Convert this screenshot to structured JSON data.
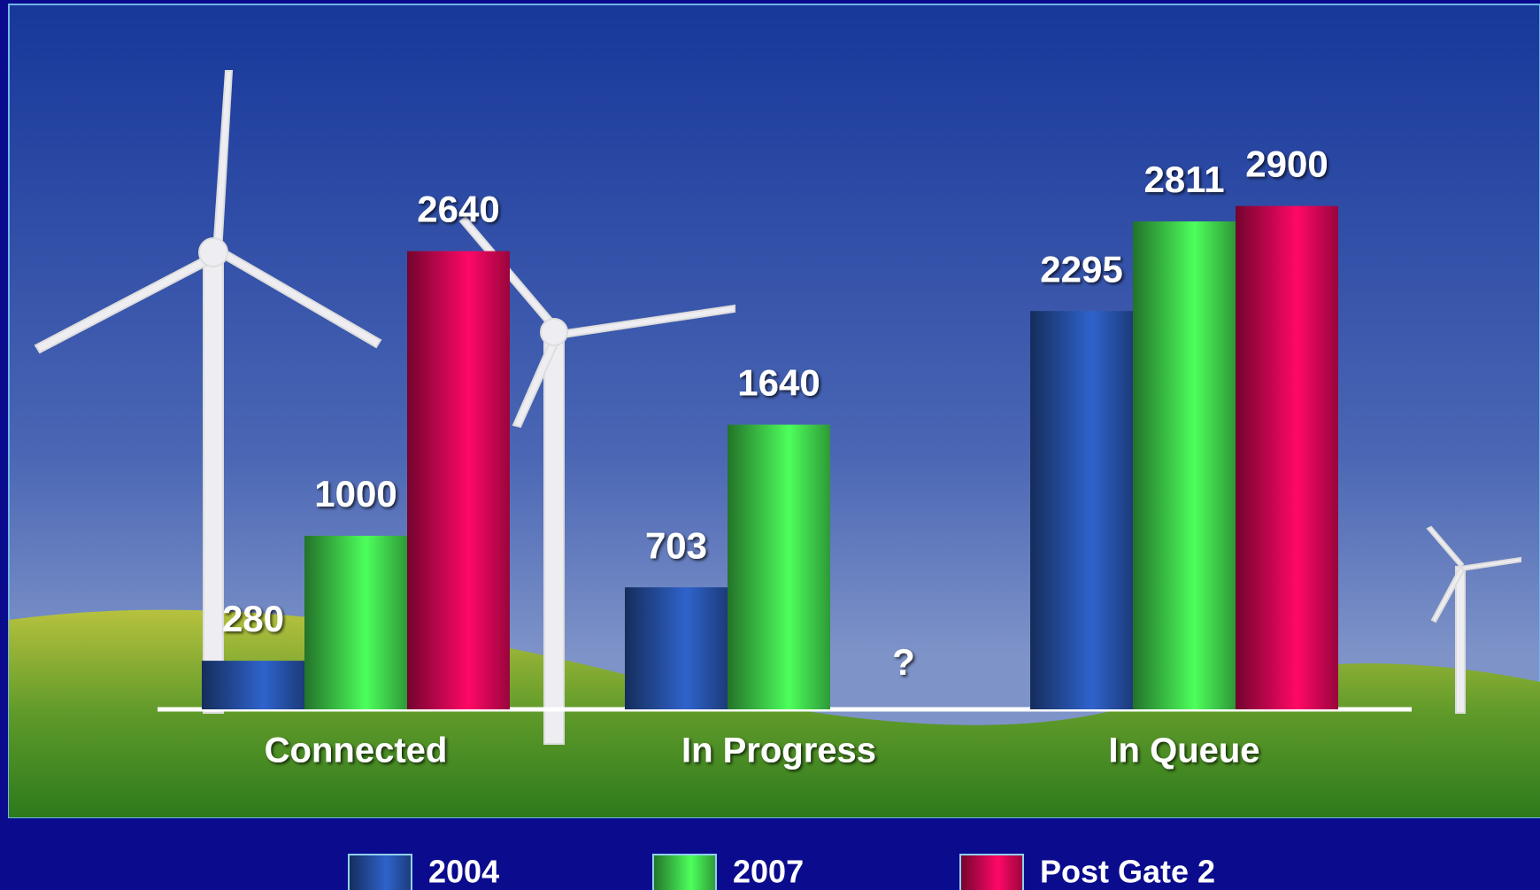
{
  "chart_data": {
    "type": "bar",
    "categories": [
      "Connected",
      "In Progress",
      "In Queue"
    ],
    "series": [
      {
        "name": "2004",
        "color": "#2f63cc",
        "values": [
          280,
          703,
          2295
        ]
      },
      {
        "name": "2007",
        "color": "#4dff5c",
        "values": [
          1000,
          1640,
          2811
        ]
      },
      {
        "name": "Post Gate 2",
        "color": "#ff0866",
        "values": [
          2640,
          null,
          2900
        ]
      }
    ],
    "null_label": "?",
    "ylim": [
      0,
      3500
    ],
    "grid": false,
    "legend": "bottom"
  }
}
